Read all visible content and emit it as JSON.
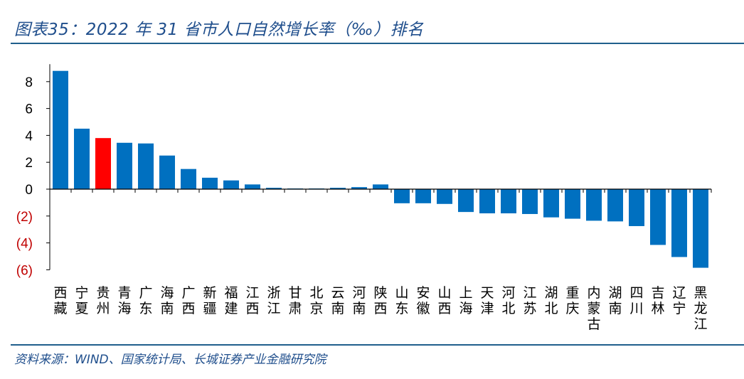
{
  "header": {
    "title": "图表35：2022 年 31 省市人口自然增长率（‰）排名"
  },
  "footer": {
    "source": "资料来源：WIND、国家统计局、长城证券产业金融研究院"
  },
  "colors": {
    "bar": "#0070c0",
    "highlight": "#ff0000",
    "negative_tick": "#c00000",
    "positive_tick": "#000000"
  },
  "chart_data": {
    "type": "bar",
    "title": "2022 年 31 省市人口自然增长率（‰）排名",
    "xlabel": "",
    "ylabel": "",
    "ylim": [
      -6,
      9
    ],
    "yticks": [
      8,
      6,
      4,
      2,
      0,
      -2,
      -4,
      -6
    ],
    "ytick_labels": [
      "8",
      "6",
      "4",
      "2",
      "0",
      "(2)",
      "(4)",
      "(6)"
    ],
    "grid": false,
    "categories": [
      "西藏",
      "宁夏",
      "贵州",
      "青海",
      "广东",
      "海南",
      "广西",
      "新疆",
      "福建",
      "江西",
      "浙江",
      "甘肃",
      "北京",
      "云南",
      "河南",
      "陕西",
      "山东",
      "安徽",
      "山西",
      "上海",
      "天津",
      "河北",
      "江苏",
      "湖北",
      "重庆",
      "内蒙古",
      "湖南",
      "四川",
      "吉林",
      "辽宁",
      "黑龙江"
    ],
    "values": [
      8.8,
      4.5,
      3.8,
      3.45,
      3.4,
      2.5,
      1.5,
      0.85,
      0.65,
      0.35,
      0.1,
      0.05,
      0.05,
      0.1,
      0.15,
      0.35,
      -1.05,
      -1.05,
      -1.1,
      -1.7,
      -1.8,
      -1.8,
      -1.85,
      -2.1,
      -2.2,
      -2.35,
      -2.4,
      -2.75,
      -4.15,
      -5.05,
      -5.85
    ],
    "highlight_category": "贵州"
  }
}
